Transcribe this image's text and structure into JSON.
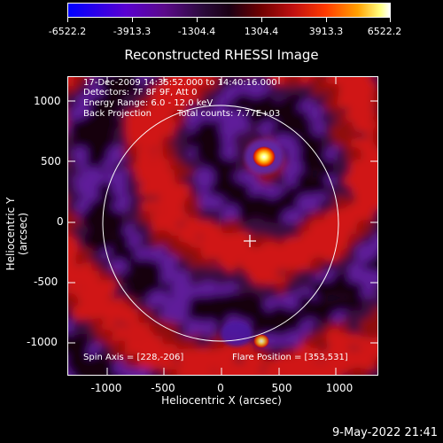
{
  "colorbar": {
    "labels": [
      "-6522.2",
      "-3913.3",
      "-1304.4",
      "1304.4",
      "3913.3",
      "6522.2"
    ]
  },
  "title": "Reconstructed RHESSI Image",
  "annotations": {
    "time_range": "17-Dec-2009 14:35:52.000 to 14:40:16.000",
    "detectors": "Detectors: 7F 8F 9F, Att 0",
    "energy_range": "Energy Range: 6.0 - 12.0 keV",
    "method": "Back Projection",
    "total_counts": "Total counts: 7.77E+03",
    "spin_axis": "Spin Axis = [228,-206]",
    "flare_position": "Flare Position = [353,531]"
  },
  "axes": {
    "xlabel": "Heliocentric X (arcsec)",
    "ylabel": "Heliocentric Y (arcsec)",
    "xticks": [
      "-1000",
      "-500",
      "0",
      "500",
      "1000"
    ],
    "yticks": [
      "1000",
      "500",
      "0",
      "-500",
      "-1000"
    ]
  },
  "footer": "9-May-2022 21:41",
  "colors": {
    "background": "#000000",
    "axes": "#ffffff"
  }
}
